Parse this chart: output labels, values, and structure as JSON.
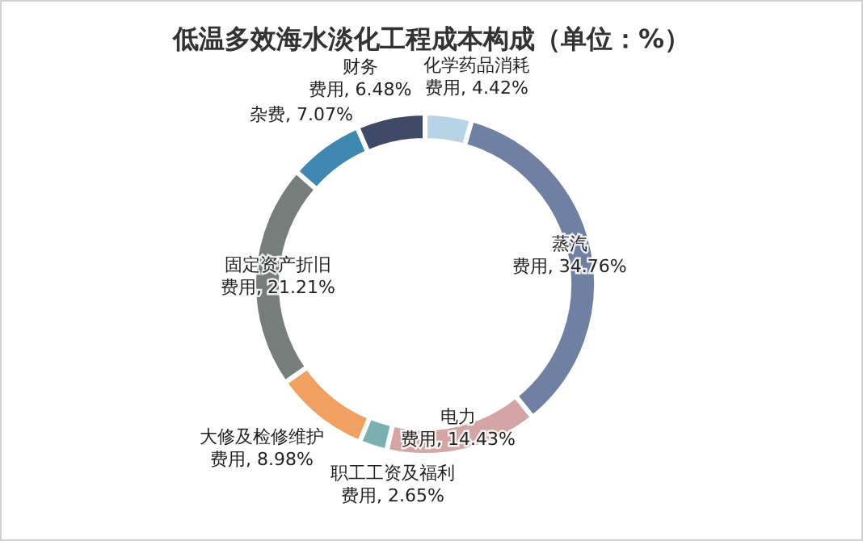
{
  "chart_data": {
    "type": "donut",
    "title": "低温多效海水淡化工程成本构成（单位：%）",
    "categories": [
      "化学药品消耗费用",
      "蒸汽费用",
      "电力费用",
      "职工工资及福利费用",
      "大修及检修维护费用",
      "固定资产折旧费用",
      "杂费",
      "财务费用"
    ],
    "values": [
      4.42,
      34.76,
      14.43,
      2.65,
      8.98,
      21.21,
      7.07,
      6.48
    ],
    "value_labels": [
      "4.42%",
      "34.76%",
      "14.43%",
      "2.65%",
      "8.98%",
      "21.21%",
      "7.07%",
      "6.48%"
    ],
    "colors": [
      "#b7d3e6",
      "#7080a2",
      "#d5a5a5",
      "#7ab0b0",
      "#f0a060",
      "#767e7b",
      "#3f88b1",
      "#3e4a68"
    ],
    "legend": false
  }
}
